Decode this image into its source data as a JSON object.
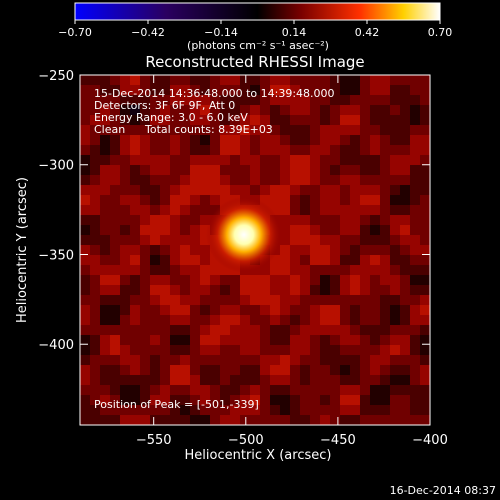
{
  "chart_data": {
    "type": "heatmap",
    "title": "Reconstructed RHESSI Image",
    "xlabel": "Heliocentric X (arcsec)",
    "ylabel": "Heliocentric Y (arcsec)",
    "xlim": [
      -590,
      -400
    ],
    "ylim": [
      -445,
      -250
    ],
    "x_ticks": [
      -550,
      -500,
      -450,
      -400
    ],
    "y_ticks": [
      -250,
      -300,
      -350,
      -400
    ],
    "x_tick_labels": [
      "−550",
      "−500",
      "−450",
      "−400"
    ],
    "y_tick_labels": [
      "−250",
      "−300",
      "−350",
      "−400"
    ],
    "colorbar": {
      "min": -0.7,
      "max": 0.7,
      "ticks": [
        -0.7,
        -0.42,
        -0.14,
        0.14,
        0.42,
        0.7
      ],
      "tick_labels": [
        "−0.70",
        "−0.42",
        "−0.14",
        "0.14",
        "0.42",
        "0.70"
      ],
      "unit_label": "(photons cm⁻² s⁻¹ asec⁻²)",
      "colormap": [
        "#0000ff",
        "#2a0060",
        "#000000",
        "#7a0000",
        "#ff3000",
        "#ffd000",
        "#ffffff"
      ]
    },
    "peak": {
      "x": -501,
      "y": -339,
      "value": 0.7
    },
    "annotations": {
      "time_range": "15-Dec-2014 14:36:48.000 to 14:39:48.000",
      "detectors": "Detectors: 3F 6F 9F, Att 0",
      "energy_range": "Energy Range: 3.0 - 6.0 keV",
      "clean_label": "Clean",
      "total_counts": "Total counts: 8.39E+03",
      "peak_position": "Position of Peak = [-501,-339]"
    }
  },
  "footer": {
    "timestamp": "16-Dec-2014 08:37"
  }
}
